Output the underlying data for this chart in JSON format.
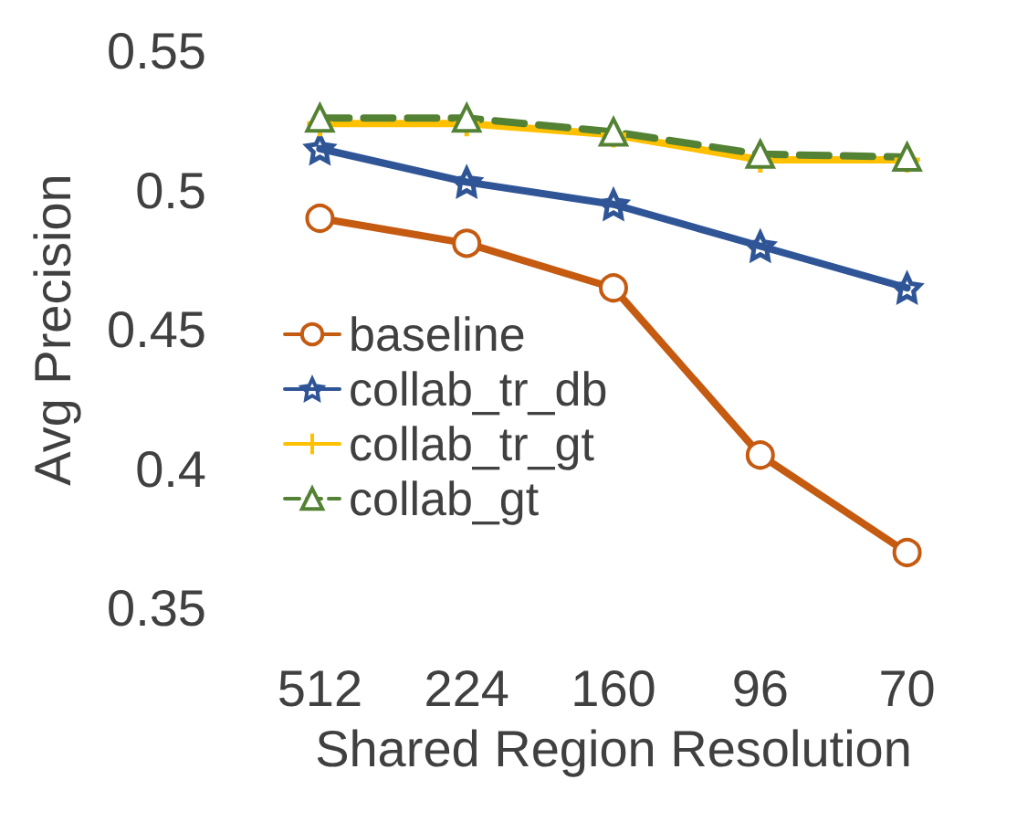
{
  "chart_data": {
    "type": "line",
    "xlabel": "Shared Region Resolution",
    "ylabel": "Avg Precision",
    "categories": [
      "512",
      "224",
      "160",
      "96",
      "70"
    ],
    "ylim": [
      0.35,
      0.55
    ],
    "yticks": [
      0.35,
      0.4,
      0.45,
      0.5,
      0.55
    ],
    "grid": false,
    "legend": "left",
    "series": [
      {
        "name": "baseline",
        "color": "#c55a11",
        "marker": "circle",
        "line_style": "solid",
        "values": [
          0.49,
          0.481,
          0.465,
          0.405,
          0.37
        ]
      },
      {
        "name": "collab_tr_db",
        "color": "#2f5597",
        "marker": "star",
        "line_style": "solid",
        "values": [
          0.515,
          0.503,
          0.495,
          0.48,
          0.465
        ]
      },
      {
        "name": "collab_tr_gt",
        "color": "#ffc000",
        "marker": "cross",
        "line_style": "solid",
        "values": [
          0.524,
          0.524,
          0.52,
          0.511,
          0.511
        ]
      },
      {
        "name": "collab_gt",
        "color": "#548235",
        "marker": "triangle",
        "line_style": "dashed",
        "values": [
          0.526,
          0.526,
          0.521,
          0.513,
          0.512
        ]
      }
    ]
  }
}
